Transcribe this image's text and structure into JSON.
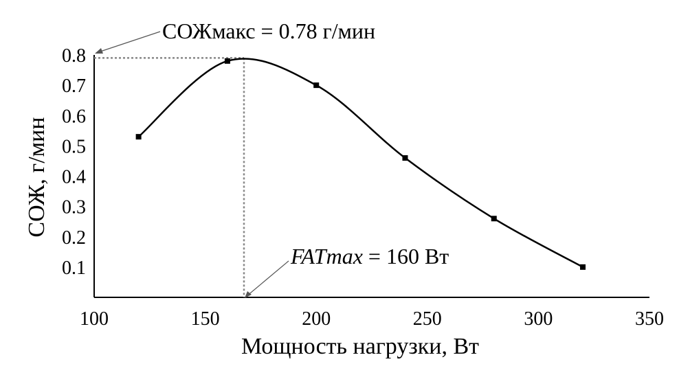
{
  "chart_data": {
    "type": "line",
    "title": "",
    "xlabel": "Мощность нагрузки, Вт",
    "ylabel": "СОЖ, г/мин",
    "xlim": [
      100,
      350
    ],
    "ylim": [
      0,
      0.8
    ],
    "x_ticks": [
      "100",
      "150",
      "200",
      "250",
      "300",
      "350"
    ],
    "y_ticks": [
      "0.1",
      "0.2",
      "0.3",
      "0.4",
      "0.5",
      "0.6",
      "0.7",
      "0.8"
    ],
    "grid": false,
    "series": [
      {
        "x": [
          120,
          160,
          200,
          240,
          280,
          320
        ],
        "y": [
          0.53,
          0.78,
          0.7,
          0.46,
          0.26,
          0.1
        ]
      }
    ],
    "annotations": {
      "max_label": "СОЖмакс = 0.78 г/мин",
      "fatmax_italic": "FATmax",
      "fatmax_rest": " = 160 Вт"
    },
    "colors": {
      "line": "#000000",
      "guide": "#888888"
    }
  }
}
